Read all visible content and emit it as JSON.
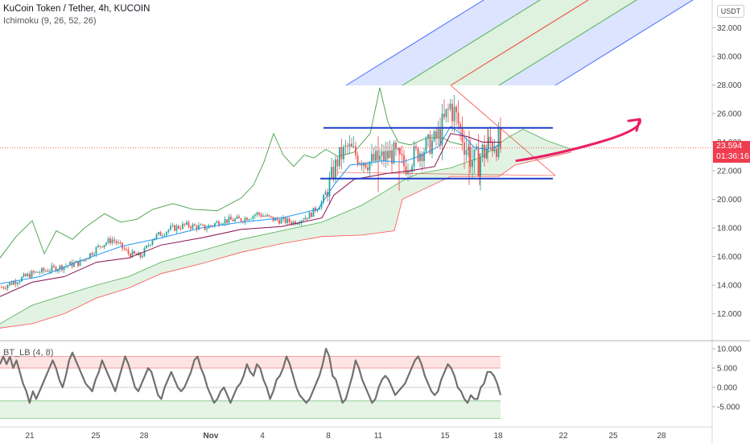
{
  "legend": {
    "title": "KuCoin Token / Tether, 4h, KUCOIN",
    "indicator": "Ichimoku (9, 26, 52, 26)",
    "oscillator": "BT_LB (4, 8)"
  },
  "currency_button": "USDT",
  "last_price": {
    "value": "23.594",
    "countdown": "01:36:16"
  },
  "colors": {
    "up": "#26a69a",
    "down": "#ef5350",
    "tenkan": "#2196f3",
    "kijun": "#880e4f",
    "chikou": "#43a047",
    "span_a": "#4caf50",
    "span_b": "#ff5252",
    "level_lines": "#1e3ec7",
    "arrow": "#e91e63",
    "fork_blue": "#4a70ff",
    "fork_green": "#4caf50",
    "fork_red": "#f44336",
    "oscillator": "#707070"
  },
  "chart_data": [
    {
      "type": "candlestick",
      "title": "KuCoin Token / Tether, 4h, KUCOIN",
      "x_tick_labels": [
        "21",
        "25",
        "28",
        "Nov",
        "4",
        "8",
        "11",
        "15",
        "18",
        "22",
        "25",
        "28"
      ],
      "y_tick_labels": [
        "32.000",
        "30.000",
        "28.000",
        "26.000",
        "24.000",
        "22.000",
        "20.000",
        "18.000",
        "16.000",
        "14.000",
        "12.000"
      ],
      "ylim": [
        10.8,
        33.7
      ],
      "last_price": 23.594,
      "close_path": [
        {
          "x": 0,
          "y": 13.8
        },
        {
          "x": 40,
          "y": 14.8
        },
        {
          "x": 70,
          "y": 15.2
        },
        {
          "x": 100,
          "y": 15.6
        },
        {
          "x": 125,
          "y": 16.8
        },
        {
          "x": 140,
          "y": 17.2
        },
        {
          "x": 160,
          "y": 16.2
        },
        {
          "x": 175,
          "y": 16.0
        },
        {
          "x": 190,
          "y": 17.3
        },
        {
          "x": 210,
          "y": 17.9
        },
        {
          "x": 230,
          "y": 18.2
        },
        {
          "x": 255,
          "y": 18.0
        },
        {
          "x": 275,
          "y": 18.5
        },
        {
          "x": 300,
          "y": 18.6
        },
        {
          "x": 320,
          "y": 19.0
        },
        {
          "x": 340,
          "y": 18.6
        },
        {
          "x": 365,
          "y": 18.4
        },
        {
          "x": 385,
          "y": 18.9
        },
        {
          "x": 400,
          "y": 19.8
        },
        {
          "x": 410,
          "y": 21.2
        },
        {
          "x": 420,
          "y": 22.8
        },
        {
          "x": 432,
          "y": 23.6
        },
        {
          "x": 445,
          "y": 23.0
        },
        {
          "x": 460,
          "y": 22.6
        },
        {
          "x": 475,
          "y": 22.9
        },
        {
          "x": 490,
          "y": 23.2
        },
        {
          "x": 503,
          "y": 22.3
        },
        {
          "x": 515,
          "y": 23.1
        },
        {
          "x": 528,
          "y": 23.6
        },
        {
          "x": 540,
          "y": 24.1
        },
        {
          "x": 550,
          "y": 25.0
        },
        {
          "x": 560,
          "y": 26.6
        },
        {
          "x": 570,
          "y": 25.2
        },
        {
          "x": 580,
          "y": 23.6
        },
        {
          "x": 590,
          "y": 22.4
        },
        {
          "x": 598,
          "y": 23.1
        },
        {
          "x": 608,
          "y": 23.8
        },
        {
          "x": 616,
          "y": 24.2
        },
        {
          "x": 622,
          "y": 23.6
        }
      ],
      "candle_range_x": [
        2,
        622
      ],
      "ichimoku": {
        "tenkan": [
          {
            "x": 0,
            "y": 14.1
          },
          {
            "x": 50,
            "y": 14.6
          },
          {
            "x": 100,
            "y": 15.7
          },
          {
            "x": 150,
            "y": 16.7
          },
          {
            "x": 200,
            "y": 17.3
          },
          {
            "x": 250,
            "y": 18.0
          },
          {
            "x": 300,
            "y": 18.4
          },
          {
            "x": 350,
            "y": 18.7
          },
          {
            "x": 395,
            "y": 19.3
          },
          {
            "x": 415,
            "y": 21.0
          },
          {
            "x": 435,
            "y": 22.4
          },
          {
            "x": 455,
            "y": 22.5
          },
          {
            "x": 475,
            "y": 22.7
          },
          {
            "x": 500,
            "y": 22.6
          },
          {
            "x": 525,
            "y": 23.1
          },
          {
            "x": 545,
            "y": 23.7
          },
          {
            "x": 560,
            "y": 25.1
          },
          {
            "x": 575,
            "y": 24.5
          },
          {
            "x": 590,
            "y": 23.6
          },
          {
            "x": 605,
            "y": 23.5
          },
          {
            "x": 622,
            "y": 23.8
          }
        ],
        "kijun": [
          {
            "x": 0,
            "y": 13.2
          },
          {
            "x": 40,
            "y": 14.2
          },
          {
            "x": 80,
            "y": 14.6
          },
          {
            "x": 120,
            "y": 15.6
          },
          {
            "x": 160,
            "y": 15.9
          },
          {
            "x": 200,
            "y": 16.8
          },
          {
            "x": 250,
            "y": 17.3
          },
          {
            "x": 300,
            "y": 17.9
          },
          {
            "x": 350,
            "y": 18.1
          },
          {
            "x": 400,
            "y": 18.7
          },
          {
            "x": 415,
            "y": 20.3
          },
          {
            "x": 440,
            "y": 21.4
          },
          {
            "x": 480,
            "y": 21.8
          },
          {
            "x": 510,
            "y": 22.0
          },
          {
            "x": 540,
            "y": 22.3
          },
          {
            "x": 560,
            "y": 24.6
          },
          {
            "x": 580,
            "y": 24.4
          },
          {
            "x": 600,
            "y": 24.0
          },
          {
            "x": 622,
            "y": 24.0
          }
        ],
        "chikou": [
          {
            "x": 0,
            "y": 15.9
          },
          {
            "x": 20,
            "y": 17.4
          },
          {
            "x": 40,
            "y": 18.5
          },
          {
            "x": 55,
            "y": 16.2
          },
          {
            "x": 70,
            "y": 17.8
          },
          {
            "x": 90,
            "y": 17.2
          },
          {
            "x": 105,
            "y": 18.0
          },
          {
            "x": 130,
            "y": 19.0
          },
          {
            "x": 150,
            "y": 18.4
          },
          {
            "x": 170,
            "y": 18.6
          },
          {
            "x": 190,
            "y": 19.3
          },
          {
            "x": 215,
            "y": 19.7
          },
          {
            "x": 240,
            "y": 19.3
          },
          {
            "x": 270,
            "y": 19.2
          },
          {
            "x": 300,
            "y": 20.1
          },
          {
            "x": 315,
            "y": 21.0
          },
          {
            "x": 328,
            "y": 22.6
          },
          {
            "x": 340,
            "y": 24.6
          },
          {
            "x": 352,
            "y": 23.1
          },
          {
            "x": 365,
            "y": 22.3
          },
          {
            "x": 378,
            "y": 23.1
          },
          {
            "x": 390,
            "y": 22.9
          },
          {
            "x": 405,
            "y": 23.5
          },
          {
            "x": 420,
            "y": 23.0
          },
          {
            "x": 440,
            "y": 23.3
          },
          {
            "x": 460,
            "y": 24.6
          },
          {
            "x": 472,
            "y": 27.8
          },
          {
            "x": 482,
            "y": 25.4
          },
          {
            "x": 495,
            "y": 24.0
          },
          {
            "x": 510,
            "y": 23.8
          },
          {
            "x": 530,
            "y": 24.3
          },
          {
            "x": 550,
            "y": 24.3
          },
          {
            "x": 560,
            "y": 24.0
          },
          {
            "x": 575,
            "y": 23.8
          }
        ],
        "span_a": [
          {
            "x": 0,
            "y": 11.3
          },
          {
            "x": 40,
            "y": 12.6
          },
          {
            "x": 80,
            "y": 13.3
          },
          {
            "x": 120,
            "y": 14.0
          },
          {
            "x": 160,
            "y": 14.6
          },
          {
            "x": 200,
            "y": 15.6
          },
          {
            "x": 250,
            "y": 16.4
          },
          {
            "x": 300,
            "y": 17.2
          },
          {
            "x": 350,
            "y": 17.8
          },
          {
            "x": 400,
            "y": 18.4
          },
          {
            "x": 450,
            "y": 19.6
          },
          {
            "x": 480,
            "y": 20.6
          },
          {
            "x": 500,
            "y": 21.3
          },
          {
            "x": 520,
            "y": 21.8
          },
          {
            "x": 560,
            "y": 22.2
          },
          {
            "x": 600,
            "y": 23.0
          },
          {
            "x": 630,
            "y": 24.3
          },
          {
            "x": 650,
            "y": 24.9
          },
          {
            "x": 680,
            "y": 24.1
          },
          {
            "x": 710,
            "y": 23.5
          }
        ],
        "span_b": [
          {
            "x": 0,
            "y": 11.0
          },
          {
            "x": 40,
            "y": 11.3
          },
          {
            "x": 80,
            "y": 12.0
          },
          {
            "x": 120,
            "y": 13.1
          },
          {
            "x": 160,
            "y": 13.8
          },
          {
            "x": 200,
            "y": 14.8
          },
          {
            "x": 250,
            "y": 15.5
          },
          {
            "x": 300,
            "y": 16.3
          },
          {
            "x": 350,
            "y": 16.9
          },
          {
            "x": 400,
            "y": 17.4
          },
          {
            "x": 450,
            "y": 17.5
          },
          {
            "x": 490,
            "y": 17.8
          },
          {
            "x": 500,
            "y": 20.0
          },
          {
            "x": 530,
            "y": 20.8
          },
          {
            "x": 560,
            "y": 21.6
          },
          {
            "x": 620,
            "y": 21.6
          },
          {
            "x": 640,
            "y": 22.4
          },
          {
            "x": 710,
            "y": 23.3
          }
        ]
      },
      "drawings": {
        "horizontal_levels": [
          {
            "y": 25.0,
            "x_from": 402,
            "x_to": 687
          },
          {
            "y": 21.45,
            "x_from": 398,
            "x_to": 687
          }
        ],
        "arrow": {
          "points": [
            {
              "x": 642,
              "y": 22.7
            },
            {
              "x": 690,
              "y": 23.1
            },
            {
              "x": 745,
              "y": 24.0
            },
            {
              "x": 795,
              "y": 25.6
            }
          ]
        },
        "pitchfork": {
          "direction": "up-right",
          "color_bands": [
            "blue",
            "green",
            "green",
            "blue"
          ]
        }
      }
    },
    {
      "type": "line",
      "title": "BT_LB (4, 8)",
      "y_tick_labels": [
        "10.000",
        "5.000",
        "0.000",
        "-5.000"
      ],
      "ylim": [
        -8.5,
        10.5
      ],
      "bands": {
        "upper": [
          5,
          8
        ],
        "lower": [
          -8,
          -3.5
        ]
      },
      "series": [
        {
          "values": [
            6,
            8,
            6,
            8,
            5,
            7,
            4,
            1,
            -1,
            -4,
            -1,
            -3,
            -1,
            1,
            3,
            5,
            7,
            5,
            2,
            0,
            3,
            7,
            9,
            7,
            5,
            3,
            1,
            0,
            -1,
            2,
            4,
            7,
            5,
            3,
            1,
            -1,
            2,
            5,
            8,
            6,
            3,
            0,
            -1,
            1,
            3,
            5,
            4,
            1,
            -2,
            -3,
            0,
            2,
            4,
            2,
            0,
            -1,
            0,
            2,
            4,
            7,
            8,
            5,
            3,
            0,
            -2,
            -4,
            -3,
            -1,
            0,
            -2,
            -4,
            -2,
            0,
            1,
            3,
            6,
            4,
            3,
            6,
            5,
            2,
            0,
            -3,
            -1,
            2,
            3,
            5,
            8,
            6,
            3,
            0,
            -2,
            -3,
            -4,
            -3,
            -1,
            1,
            3,
            6,
            10,
            8,
            3,
            2,
            -1,
            -4,
            -3,
            0,
            3,
            7,
            5,
            2,
            0,
            -2,
            -4,
            -3,
            0,
            2,
            3,
            2,
            0,
            -2,
            -1,
            0,
            1,
            3,
            5,
            7,
            8,
            6,
            3,
            1,
            -1,
            -2,
            -1,
            2,
            4,
            6,
            5,
            3,
            0,
            -1,
            -3,
            -4,
            -2,
            -3,
            -3,
            0,
            1,
            4,
            4,
            3,
            1,
            -2
          ]
        }
      ]
    }
  ]
}
